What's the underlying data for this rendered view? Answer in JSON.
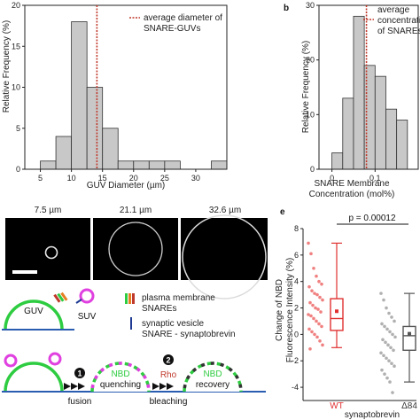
{
  "panel_labels": {
    "b": "b",
    "e": "e"
  },
  "panel_a": {
    "ylabel": "Relative Frequency (%)",
    "xlabel": "GUV Diameter (µm)",
    "legend": [
      "average diameter of",
      "SNARE-GUVs"
    ],
    "colors": {
      "bar": "#c8c8c8",
      "ref": "#c0392b"
    }
  },
  "panel_b": {
    "ylabel": "Relative Frequency (%)",
    "xlabel": [
      "SNARE Membrane",
      "Concentration (mol%)"
    ],
    "legend": [
      "average",
      "concentration",
      "of SNAREs"
    ],
    "colors": {
      "bar": "#c8c8c8",
      "ref": "#c0392b"
    }
  },
  "panel_d": {
    "sizes": [
      "7.5 µm",
      "21.1 µm",
      "32.6 µm"
    ]
  },
  "panel_c": {
    "guv": "GUV",
    "suv": "SUV",
    "legend": [
      {
        "icon": "snare-pair-icon",
        "lines": [
          "plasma membrane",
          "SNAREs"
        ]
      },
      {
        "icon": "vesicle-snare-icon",
        "lines": [
          "synaptic vesicle",
          "SNARE - synaptobrevin"
        ]
      }
    ],
    "steps": [
      {
        "num": "1",
        "label": "fusion"
      },
      {
        "num": "2",
        "top": "Rho",
        "label": "bleaching"
      }
    ],
    "states": [
      {
        "title": "NBD",
        "subtitle": "quenching"
      },
      {
        "title": "NBD",
        "subtitle": "recovery"
      }
    ],
    "colors": {
      "membrane": "#2ecc40",
      "vesicle": "#e040e0",
      "arrow": "#000000",
      "rho": "#c0392b"
    }
  },
  "panel_e": {
    "ylabel": [
      "Change of NBD",
      "Fluorescence Intensity (%)"
    ],
    "xlabel": "synaptobrevin",
    "pvalue": "p = 0.00012",
    "colors": {
      "WT": "#e03030",
      "d84": "#555555",
      "WT_pts": "#f08080",
      "d84_pts": "#b0b0b0"
    }
  },
  "chart_data": [
    {
      "type": "bar",
      "title": "",
      "xlabel": "GUV Diameter (µm)",
      "ylabel": "Relative Frequency (%)",
      "x_bins": [
        [
          5,
          7.5
        ],
        [
          7.5,
          10
        ],
        [
          10,
          12.5
        ],
        [
          12.5,
          15
        ],
        [
          15,
          17.5
        ],
        [
          17.5,
          20
        ],
        [
          20,
          22.5
        ],
        [
          22.5,
          25
        ],
        [
          25,
          27.5
        ],
        [
          27.5,
          30
        ],
        [
          30,
          32.5
        ],
        [
          32.5,
          35
        ]
      ],
      "values": [
        1,
        4,
        18,
        10,
        5,
        1,
        1,
        1,
        1,
        0,
        0,
        1
      ],
      "reference_line": 14.1,
      "xlim": [
        2.5,
        35
      ],
      "ylim": [
        0,
        20
      ],
      "xticks": [
        5,
        10,
        15,
        20,
        25,
        30
      ],
      "yticks": [
        0,
        5,
        10,
        15,
        20
      ]
    },
    {
      "type": "bar",
      "title": "",
      "xlabel": "SNARE Membrane Concentration (mol%)",
      "ylabel": "Relative Frequency (%)",
      "x_bins": [
        [
          0,
          0.025
        ],
        [
          0.025,
          0.05
        ],
        [
          0.05,
          0.075
        ],
        [
          0.075,
          0.1
        ],
        [
          0.1,
          0.125
        ],
        [
          0.125,
          0.15
        ],
        [
          0.15,
          0.175
        ]
      ],
      "values": [
        3,
        13,
        28,
        19,
        17,
        11,
        9
      ],
      "reference_line": 0.08,
      "xlim": [
        -0.03,
        0.2
      ],
      "ylim": [
        0,
        30
      ],
      "xticks": [
        0,
        0.1
      ],
      "yticks": [
        0,
        10,
        20,
        30
      ]
    },
    {
      "type": "box",
      "xlabel": "synaptobrevin",
      "ylabel": "Change of NBD Fluorescence Intensity (%)",
      "categories": [
        "WT",
        "Δ84"
      ],
      "boxes": [
        {
          "name": "WT",
          "whisker_low": -1,
          "q1": 0.3,
          "median": 1.2,
          "mean": 1.75,
          "q3": 2.7,
          "whisker_high": 6.9
        },
        {
          "name": "Δ84",
          "whisker_low": -3.6,
          "q1": -1.2,
          "median": -0.1,
          "mean": 0.05,
          "q3": 0.6,
          "whisker_high": 3.1
        }
      ],
      "points": {
        "WT": [
          6.9,
          6.1,
          5.0,
          4.4,
          4.0,
          3.8,
          3.6,
          3.3,
          3.1,
          3.0,
          2.8,
          2.6,
          2.4,
          2.2,
          2.0,
          1.9,
          1.7,
          1.5,
          1.4,
          1.2,
          1.0,
          0.8,
          0.6,
          0.4,
          0.2,
          0.0,
          -0.2,
          -0.5,
          -0.8,
          -1.1
        ],
        "Δ84": [
          3.1,
          2.6,
          2.0,
          1.6,
          1.3,
          1.0,
          0.8,
          0.6,
          0.4,
          0.2,
          0.0,
          -0.2,
          -0.4,
          -0.6,
          -0.8,
          -1.0,
          -1.2,
          -1.4,
          -1.6,
          -1.8,
          -2.0,
          -2.2,
          -2.4,
          -2.7,
          -3.0,
          -3.3,
          -3.6,
          -4.4
        ]
      },
      "ylim": [
        -5,
        8
      ],
      "yticks": [
        -4,
        -2,
        0,
        2,
        4,
        6,
        8
      ],
      "annotation": "p = 0.00012"
    }
  ]
}
